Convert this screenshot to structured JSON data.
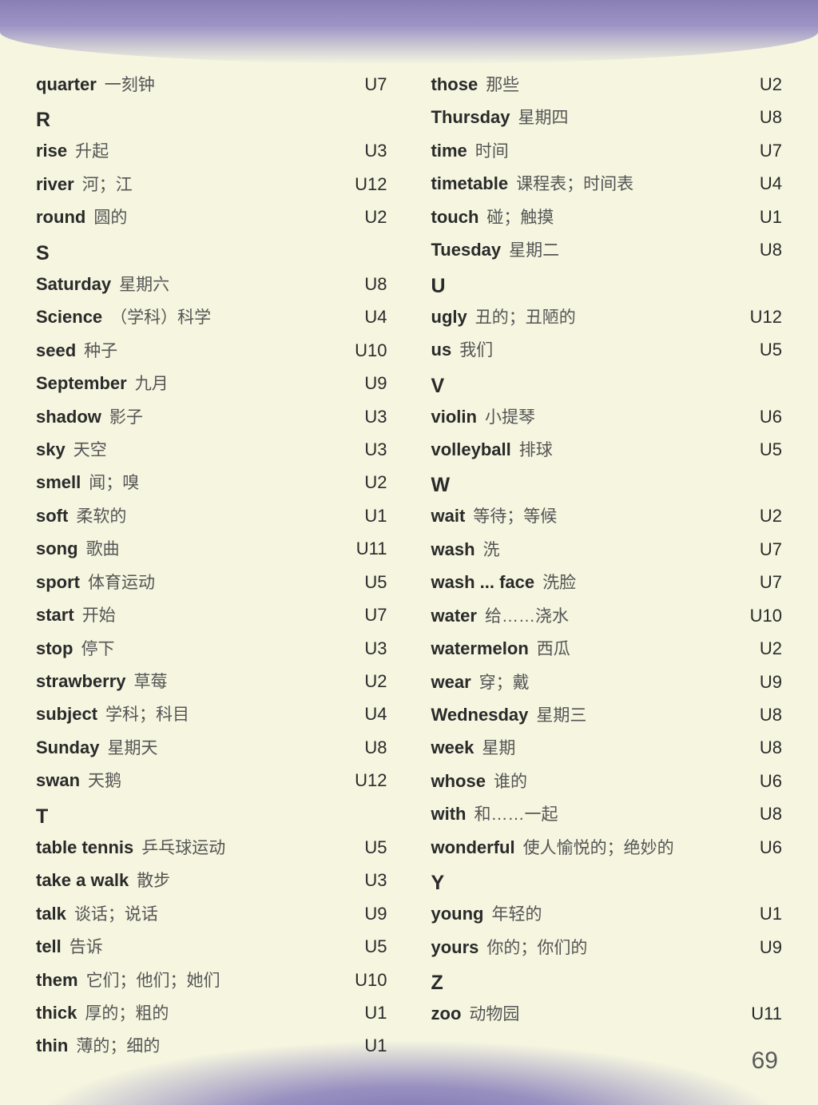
{
  "page_number": "69",
  "colors": {
    "background": "#f5f5e0",
    "curve_top": "#8a7fb5",
    "curve_bottom": "#7a6fb0",
    "text_dark": "#2a2a2a",
    "text_gray": "#555"
  },
  "left_column": [
    {
      "type": "entry",
      "english": "quarter",
      "chinese": "一刻钟",
      "unit": "U7"
    },
    {
      "type": "header",
      "letter": "R"
    },
    {
      "type": "entry",
      "english": "rise",
      "chinese": "升起",
      "unit": "U3"
    },
    {
      "type": "entry",
      "english": "river",
      "chinese": "河；江",
      "unit": "U12"
    },
    {
      "type": "entry",
      "english": "round",
      "chinese": "圆的",
      "unit": "U2"
    },
    {
      "type": "header",
      "letter": "S"
    },
    {
      "type": "entry",
      "english": "Saturday",
      "chinese": "星期六",
      "unit": "U8"
    },
    {
      "type": "entry",
      "english": "Science",
      "chinese": "（学科）科学",
      "unit": "U4"
    },
    {
      "type": "entry",
      "english": "seed",
      "chinese": "种子",
      "unit": "U10"
    },
    {
      "type": "entry",
      "english": "September",
      "chinese": "九月",
      "unit": "U9"
    },
    {
      "type": "entry",
      "english": "shadow",
      "chinese": "影子",
      "unit": "U3"
    },
    {
      "type": "entry",
      "english": "sky",
      "chinese": "天空",
      "unit": "U3"
    },
    {
      "type": "entry",
      "english": "smell",
      "chinese": "闻；嗅",
      "unit": "U2"
    },
    {
      "type": "entry",
      "english": "soft",
      "chinese": "柔软的",
      "unit": "U1"
    },
    {
      "type": "entry",
      "english": "song",
      "chinese": "歌曲",
      "unit": "U11"
    },
    {
      "type": "entry",
      "english": "sport",
      "chinese": "体育运动",
      "unit": "U5"
    },
    {
      "type": "entry",
      "english": "start",
      "chinese": "开始",
      "unit": "U7"
    },
    {
      "type": "entry",
      "english": "stop",
      "chinese": "停下",
      "unit": "U3"
    },
    {
      "type": "entry",
      "english": "strawberry",
      "chinese": "草莓",
      "unit": "U2"
    },
    {
      "type": "entry",
      "english": "subject",
      "chinese": "学科；科目",
      "unit": "U4"
    },
    {
      "type": "entry",
      "english": "Sunday",
      "chinese": "星期天",
      "unit": "U8"
    },
    {
      "type": "entry",
      "english": "swan",
      "chinese": "天鹅",
      "unit": "U12"
    },
    {
      "type": "header",
      "letter": "T"
    },
    {
      "type": "entry",
      "english": "table tennis",
      "chinese": "乒乓球运动",
      "unit": "U5"
    },
    {
      "type": "entry",
      "english": "take a walk",
      "chinese": "散步",
      "unit": "U3"
    },
    {
      "type": "entry",
      "english": "talk",
      "chinese": "谈话；说话",
      "unit": "U9"
    },
    {
      "type": "entry",
      "english": "tell",
      "chinese": "告诉",
      "unit": "U5"
    },
    {
      "type": "entry",
      "english": "them",
      "chinese": "它们；他们；她们",
      "unit": "U10"
    },
    {
      "type": "entry",
      "english": "thick",
      "chinese": "厚的；粗的",
      "unit": "U1"
    },
    {
      "type": "entry",
      "english": "thin",
      "chinese": "薄的；细的",
      "unit": "U1"
    }
  ],
  "right_column": [
    {
      "type": "entry",
      "english": "those",
      "chinese": "那些",
      "unit": "U2"
    },
    {
      "type": "entry",
      "english": "Thursday",
      "chinese": "星期四",
      "unit": "U8"
    },
    {
      "type": "entry",
      "english": "time",
      "chinese": "时间",
      "unit": "U7"
    },
    {
      "type": "entry",
      "english": "timetable",
      "chinese": "课程表；时间表",
      "unit": "U4"
    },
    {
      "type": "entry",
      "english": "touch",
      "chinese": "碰；触摸",
      "unit": "U1"
    },
    {
      "type": "entry",
      "english": "Tuesday",
      "chinese": "星期二",
      "unit": "U8"
    },
    {
      "type": "header",
      "letter": "U"
    },
    {
      "type": "entry",
      "english": "ugly",
      "chinese": "丑的；丑陋的",
      "unit": "U12"
    },
    {
      "type": "entry",
      "english": "us",
      "chinese": "我们",
      "unit": "U5"
    },
    {
      "type": "header",
      "letter": "V"
    },
    {
      "type": "entry",
      "english": "violin",
      "chinese": "小提琴",
      "unit": "U6"
    },
    {
      "type": "entry",
      "english": "volleyball",
      "chinese": "排球",
      "unit": "U5"
    },
    {
      "type": "header",
      "letter": "W"
    },
    {
      "type": "entry",
      "english": "wait",
      "chinese": "等待；等候",
      "unit": "U2"
    },
    {
      "type": "entry",
      "english": "wash",
      "chinese": "洗",
      "unit": "U7"
    },
    {
      "type": "entry",
      "english": "wash ... face",
      "chinese": "洗脸",
      "unit": "U7"
    },
    {
      "type": "entry",
      "english": "water",
      "chinese": "给……浇水",
      "unit": "U10"
    },
    {
      "type": "entry",
      "english": "watermelon",
      "chinese": "西瓜",
      "unit": "U2"
    },
    {
      "type": "entry",
      "english": "wear",
      "chinese": "穿；戴",
      "unit": "U9"
    },
    {
      "type": "entry",
      "english": "Wednesday",
      "chinese": "星期三",
      "unit": "U8"
    },
    {
      "type": "entry",
      "english": "week",
      "chinese": "星期",
      "unit": "U8"
    },
    {
      "type": "entry",
      "english": "whose",
      "chinese": "谁的",
      "unit": "U6"
    },
    {
      "type": "entry",
      "english": "with",
      "chinese": "和……一起",
      "unit": "U8"
    },
    {
      "type": "entry",
      "english": "wonderful",
      "chinese": "使人愉悦的；绝妙的",
      "unit": "U6"
    },
    {
      "type": "header",
      "letter": "Y"
    },
    {
      "type": "entry",
      "english": "young",
      "chinese": "年轻的",
      "unit": "U1"
    },
    {
      "type": "entry",
      "english": "yours",
      "chinese": "你的；你们的",
      "unit": "U9"
    },
    {
      "type": "header",
      "letter": "Z"
    },
    {
      "type": "entry",
      "english": "zoo",
      "chinese": "动物园",
      "unit": "U11"
    }
  ]
}
